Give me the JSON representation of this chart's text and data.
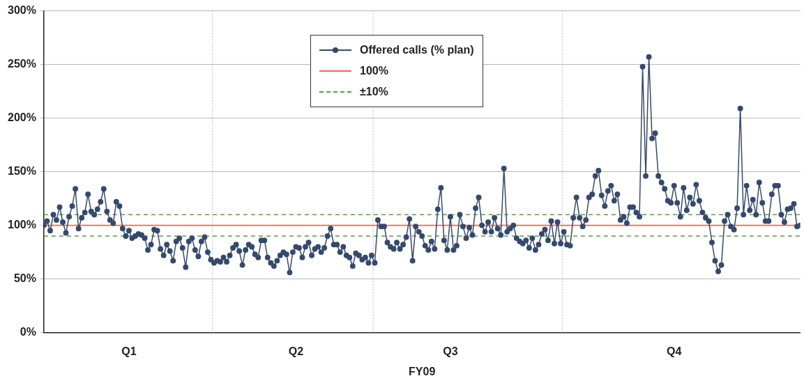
{
  "chart_data": {
    "type": "line",
    "xlabel": "FY09",
    "categories": [
      null,
      null,
      null,
      null,
      null,
      null,
      null,
      null,
      null,
      null,
      null,
      null,
      null,
      null,
      null,
      null,
      null,
      null,
      null,
      null,
      null,
      null,
      null,
      null,
      null,
      null,
      null,
      "Q1",
      null,
      null,
      null,
      null,
      null,
      null,
      null,
      null,
      null,
      null,
      null,
      null,
      null,
      null,
      null,
      null,
      null,
      null,
      null,
      null,
      null,
      null,
      null,
      null,
      null,
      null,
      null,
      null,
      null,
      null,
      null,
      null,
      null,
      null,
      null,
      null,
      null,
      null,
      null,
      null,
      null,
      null,
      null,
      null,
      null,
      null,
      null,
      null,
      null,
      null,
      null,
      null,
      "Q2",
      null,
      null,
      null,
      null,
      null,
      null,
      null,
      null,
      null,
      null,
      null,
      null,
      null,
      null,
      null,
      null,
      null,
      null,
      null,
      null,
      null,
      null,
      null,
      null,
      null,
      null,
      null,
      null,
      null,
      null,
      null,
      null,
      null,
      null,
      null,
      null,
      null,
      null,
      null,
      null,
      null,
      null,
      null,
      null,
      null,
      null,
      null,
      null,
      "Q3",
      null,
      null,
      null,
      null,
      null,
      null,
      null,
      null,
      null,
      null,
      null,
      null,
      null,
      null,
      null,
      null,
      null,
      null,
      null,
      null,
      null,
      null,
      null,
      null,
      null,
      null,
      null,
      null,
      null,
      null,
      null,
      null,
      null,
      null,
      null,
      null,
      null,
      null,
      null,
      null,
      null,
      null,
      null,
      null,
      null,
      null,
      null,
      null,
      null,
      null,
      null,
      null,
      null,
      null,
      null,
      null,
      null,
      null,
      null,
      null,
      null,
      null,
      null,
      null,
      null,
      null,
      null,
      null,
      null,
      null,
      "Q4",
      null,
      null,
      null,
      null,
      null,
      null,
      null,
      null,
      null,
      null,
      null,
      null,
      null,
      null,
      null,
      null,
      null,
      null,
      null,
      null,
      null,
      null,
      null,
      null,
      null,
      null,
      null,
      null,
      null,
      null,
      null,
      null,
      null,
      null,
      null,
      null,
      null,
      null,
      null,
      null
    ],
    "annotations": [
      "±10%"
    ],
    "ylim": [
      0,
      300
    ],
    "yticks": [
      {
        "value": 0,
        "label": "0%"
      },
      {
        "value": 50,
        "label": "50%"
      },
      {
        "value": 100,
        "label": "100%"
      },
      {
        "value": 150,
        "label": "150%"
      },
      {
        "value": 200,
        "label": "200%"
      },
      {
        "value": 250,
        "label": "250%"
      },
      {
        "value": 300,
        "label": "300%"
      }
    ],
    "grid": true,
    "legend": "top",
    "marker": "circle",
    "line_style": "solid",
    "series": [
      {
        "name": "Offered calls (% plan)",
        "color": "#34496e",
        "values": [
          100,
          104,
          95,
          110,
          105,
          117,
          103,
          93,
          108,
          118,
          134,
          97,
          107,
          112,
          129,
          113,
          110,
          115,
          122,
          134,
          113,
          105,
          102,
          122,
          118,
          97,
          90,
          95,
          88,
          90,
          92,
          91,
          88,
          77,
          82,
          96,
          95,
          78,
          72,
          82,
          76,
          67,
          85,
          88,
          79,
          61,
          85,
          88,
          77,
          71,
          85,
          89,
          75,
          68,
          65,
          67,
          66,
          70,
          66,
          72,
          79,
          82,
          76,
          63,
          77,
          82,
          80,
          73,
          70,
          86,
          86,
          70,
          65,
          62,
          67,
          72,
          75,
          73,
          56,
          75,
          80,
          79,
          70,
          80,
          84,
          72,
          78,
          80,
          75,
          79,
          90,
          97,
          82,
          82,
          75,
          80,
          72,
          70,
          62,
          74,
          72,
          68,
          70,
          65,
          72,
          65,
          105,
          99,
          99,
          84,
          80,
          78,
          84,
          78,
          82,
          89,
          106,
          67,
          99,
          94,
          90,
          81,
          77,
          85,
          78,
          115,
          135,
          86,
          77,
          108,
          77,
          81,
          110,
          99,
          88,
          98,
          91,
          116,
          126,
          100,
          94,
          103,
          94,
          107,
          97,
          91,
          153,
          94,
          97,
          100,
          88,
          85,
          83,
          86,
          79,
          88,
          77,
          82,
          92,
          96,
          86,
          104,
          83,
          103,
          83,
          94,
          82,
          81,
          107,
          126,
          107,
          99,
          105,
          126,
          129,
          146,
          151,
          128,
          118,
          132,
          137,
          123,
          129,
          105,
          108,
          102,
          117,
          117,
          112,
          108,
          248,
          146,
          257,
          181,
          186,
          146,
          140,
          134,
          123,
          121,
          137,
          121,
          108,
          135,
          114,
          126,
          120,
          138,
          123,
          112,
          107,
          104,
          84,
          67,
          57,
          63,
          104,
          110,
          99,
          96,
          116,
          209,
          110,
          137,
          114,
          124,
          110,
          140,
          121,
          104,
          104,
          129,
          137,
          137,
          110,
          103,
          115,
          116,
          120,
          99,
          100
        ]
      }
    ],
    "ref_lines": [
      {
        "axis": "y",
        "value": 100,
        "label": "100%",
        "color": "#f06a3c",
        "line_style": "solid"
      },
      {
        "axis": "y",
        "value": 110,
        "color": "#5e9a46",
        "line_style": "dashed"
      },
      {
        "axis": "y",
        "value": 90,
        "color": "#5e9a46",
        "line_style": "dashed"
      }
    ]
  }
}
